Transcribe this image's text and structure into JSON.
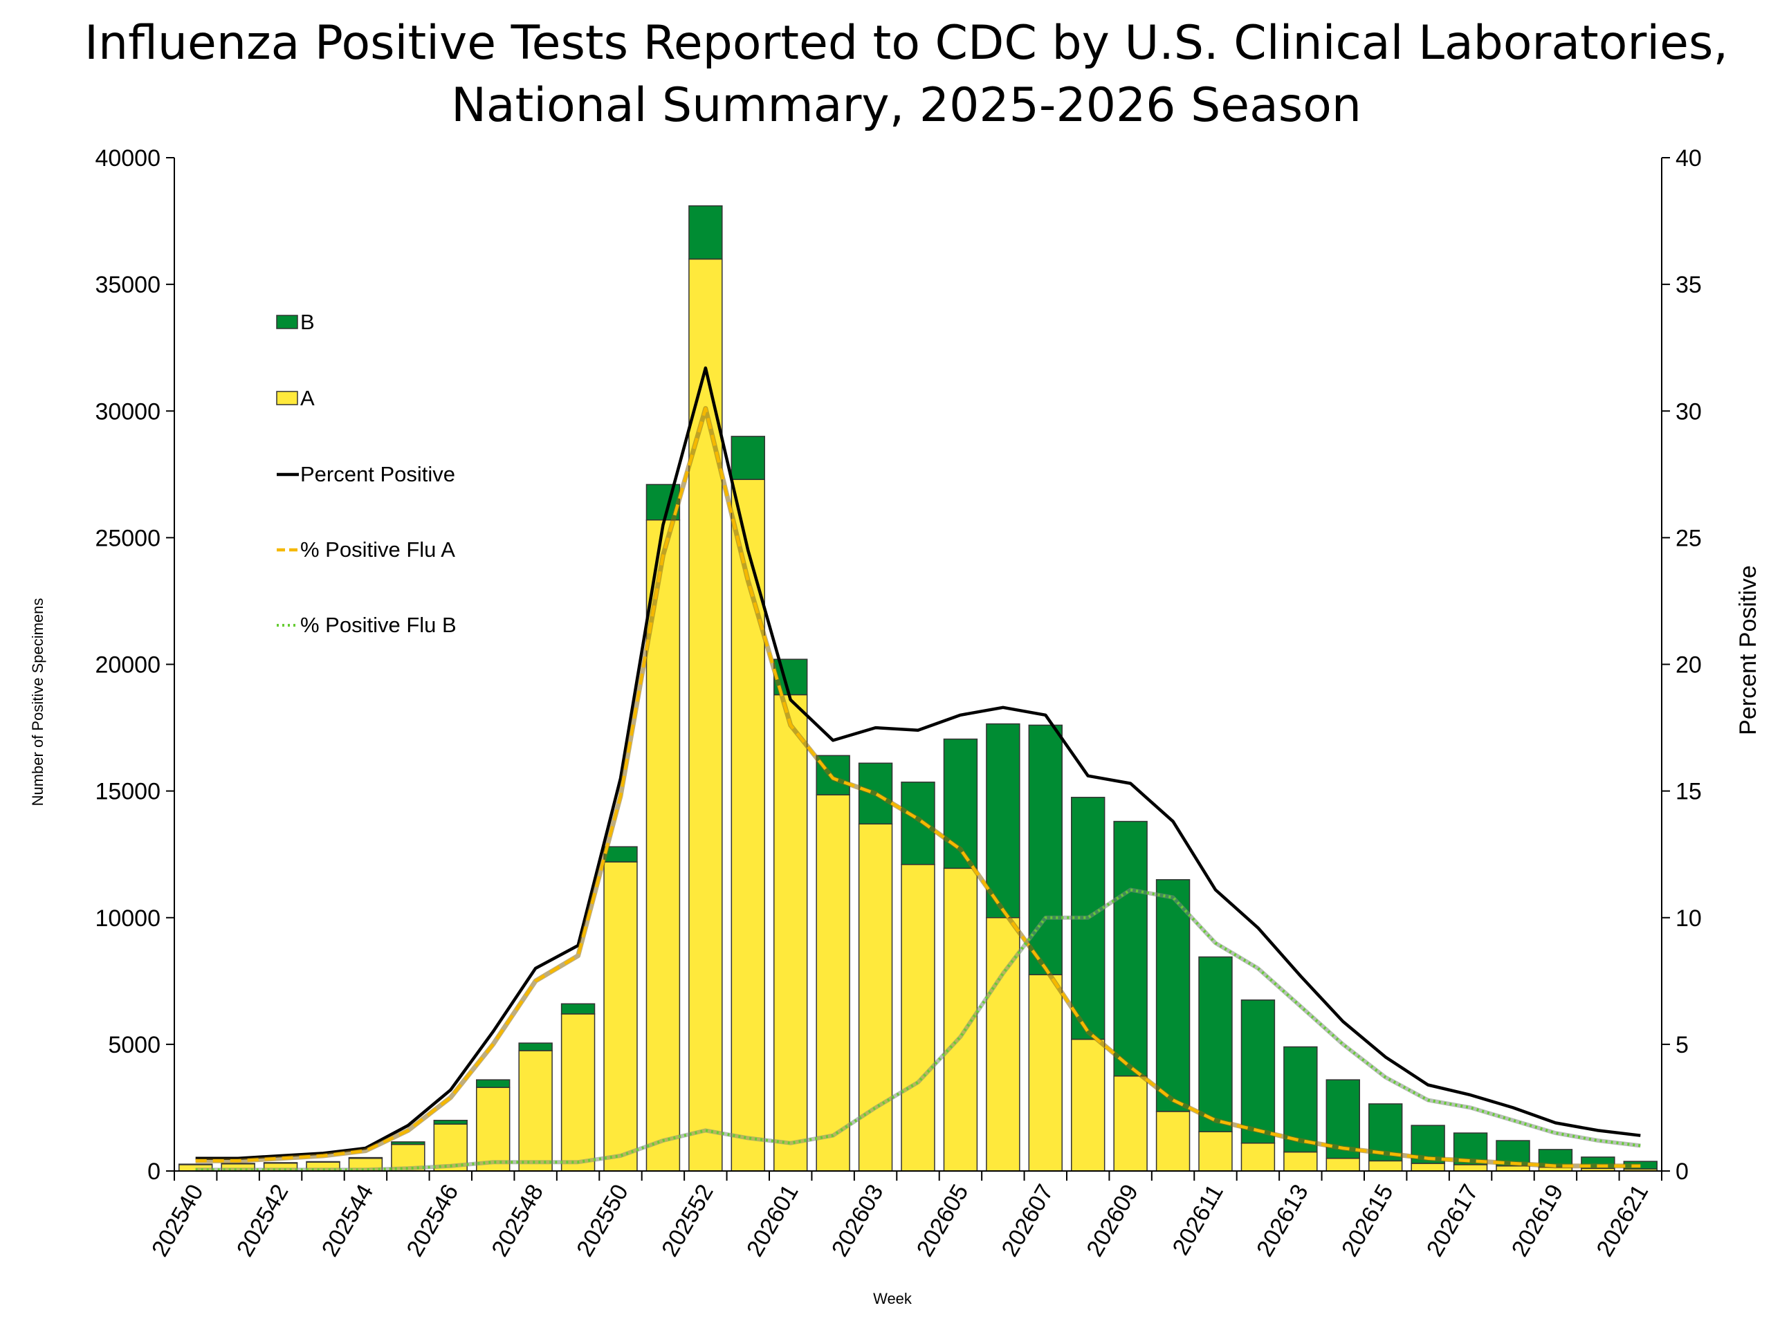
{
  "chart_data": {
    "type": "bar",
    "title": "Influenza Positive Tests Reported to CDC by U.S. Clinical Laboratories,",
    "subtitle": "National Summary, 2025-2026 Season",
    "xlabel": "Week",
    "ylabel": "Number of Positive Specimens",
    "ylabel_right": "Percent Positive",
    "ylim": [
      0,
      40000
    ],
    "ylim_right": [
      0,
      40
    ],
    "yticks": [
      "0",
      "5000",
      "10000",
      "15000",
      "20000",
      "25000",
      "30000",
      "35000",
      "40000"
    ],
    "yticks_right": [
      "0",
      "5",
      "10",
      "15",
      "20",
      "25",
      "30",
      "35",
      "40"
    ],
    "categories": [
      "202540",
      "202541",
      "202542",
      "202543",
      "202544",
      "202545",
      "202546",
      "202547",
      "202548",
      "202549",
      "202550",
      "202551",
      "202552",
      "202553",
      "202601",
      "202602",
      "202603",
      "202604",
      "202605",
      "202606",
      "202607",
      "202608",
      "202609",
      "202610",
      "202611",
      "202612",
      "202613",
      "202614",
      "202615",
      "202616",
      "202617",
      "202618",
      "202619",
      "202620",
      "202621"
    ],
    "xtick_labels": [
      "202540",
      "202542",
      "202544",
      "202546",
      "202548",
      "202550",
      "202552",
      "202601",
      "202603",
      "202605",
      "202607",
      "202609",
      "202611",
      "202613",
      "202615",
      "202617",
      "202619",
      "202621"
    ],
    "stacked_series": [
      {
        "name": "A",
        "color": "#ffe93c",
        "values": [
          250,
          280,
          310,
          350,
          500,
          1050,
          1850,
          3300,
          4750,
          6200,
          12200,
          25700,
          36000,
          27300,
          18800,
          14850,
          13700,
          12100,
          11950,
          10000,
          7750,
          5200,
          3750,
          2350,
          1550,
          1100,
          750,
          500,
          400,
          300,
          250,
          200,
          150,
          100,
          80
        ]
      },
      {
        "name": "B",
        "color": "#008c33",
        "values": [
          20,
          20,
          20,
          20,
          30,
          100,
          150,
          300,
          300,
          400,
          600,
          1400,
          2100,
          1700,
          1400,
          1550,
          2400,
          3250,
          5100,
          7650,
          9850,
          9550,
          10050,
          9150,
          6900,
          5650,
          4150,
          3100,
          2250,
          1500,
          1250,
          1000,
          700,
          450,
          300
        ]
      }
    ],
    "line_series": [
      {
        "name": "Percent Positive",
        "color": "#000000",
        "style": "solid",
        "values": [
          0.5,
          0.5,
          0.6,
          0.7,
          0.9,
          1.8,
          3.2,
          5.5,
          8.0,
          8.9,
          15.5,
          25.5,
          31.7,
          24.5,
          18.6,
          17.0,
          17.5,
          17.4,
          18.0,
          18.3,
          18.0,
          15.6,
          15.3,
          13.8,
          11.1,
          9.6,
          7.7,
          5.9,
          4.5,
          3.4,
          3.0,
          2.5,
          1.9,
          1.6,
          1.4
        ]
      },
      {
        "name": "% Positive Flu A",
        "color": "#f5b800",
        "style": "dashed",
        "values": [
          0.4,
          0.4,
          0.5,
          0.6,
          0.8,
          1.6,
          2.9,
          5.0,
          7.5,
          8.5,
          14.8,
          24.3,
          30.1,
          23.3,
          17.6,
          15.5,
          14.9,
          13.9,
          12.7,
          10.3,
          8.0,
          5.5,
          4.1,
          2.8,
          2.0,
          1.6,
          1.2,
          0.9,
          0.7,
          0.5,
          0.4,
          0.3,
          0.2,
          0.2,
          0.2
        ]
      },
      {
        "name": "% Positive Flu B",
        "color": "#66cc33",
        "style": "dotted",
        "values": [
          0.05,
          0.05,
          0.05,
          0.05,
          0.05,
          0.1,
          0.2,
          0.35,
          0.35,
          0.35,
          0.6,
          1.2,
          1.6,
          1.3,
          1.1,
          1.4,
          2.5,
          3.5,
          5.3,
          7.8,
          10.0,
          10.0,
          11.1,
          10.8,
          9.0,
          8.0,
          6.5,
          5.0,
          3.7,
          2.8,
          2.5,
          2.0,
          1.5,
          1.2,
          1.0
        ]
      }
    ],
    "legend": {
      "placement": "upper-left",
      "entries": [
        "B",
        "A",
        "Percent Positive",
        "% Positive Flu A",
        "% Positive Flu B"
      ]
    },
    "grid": false
  }
}
